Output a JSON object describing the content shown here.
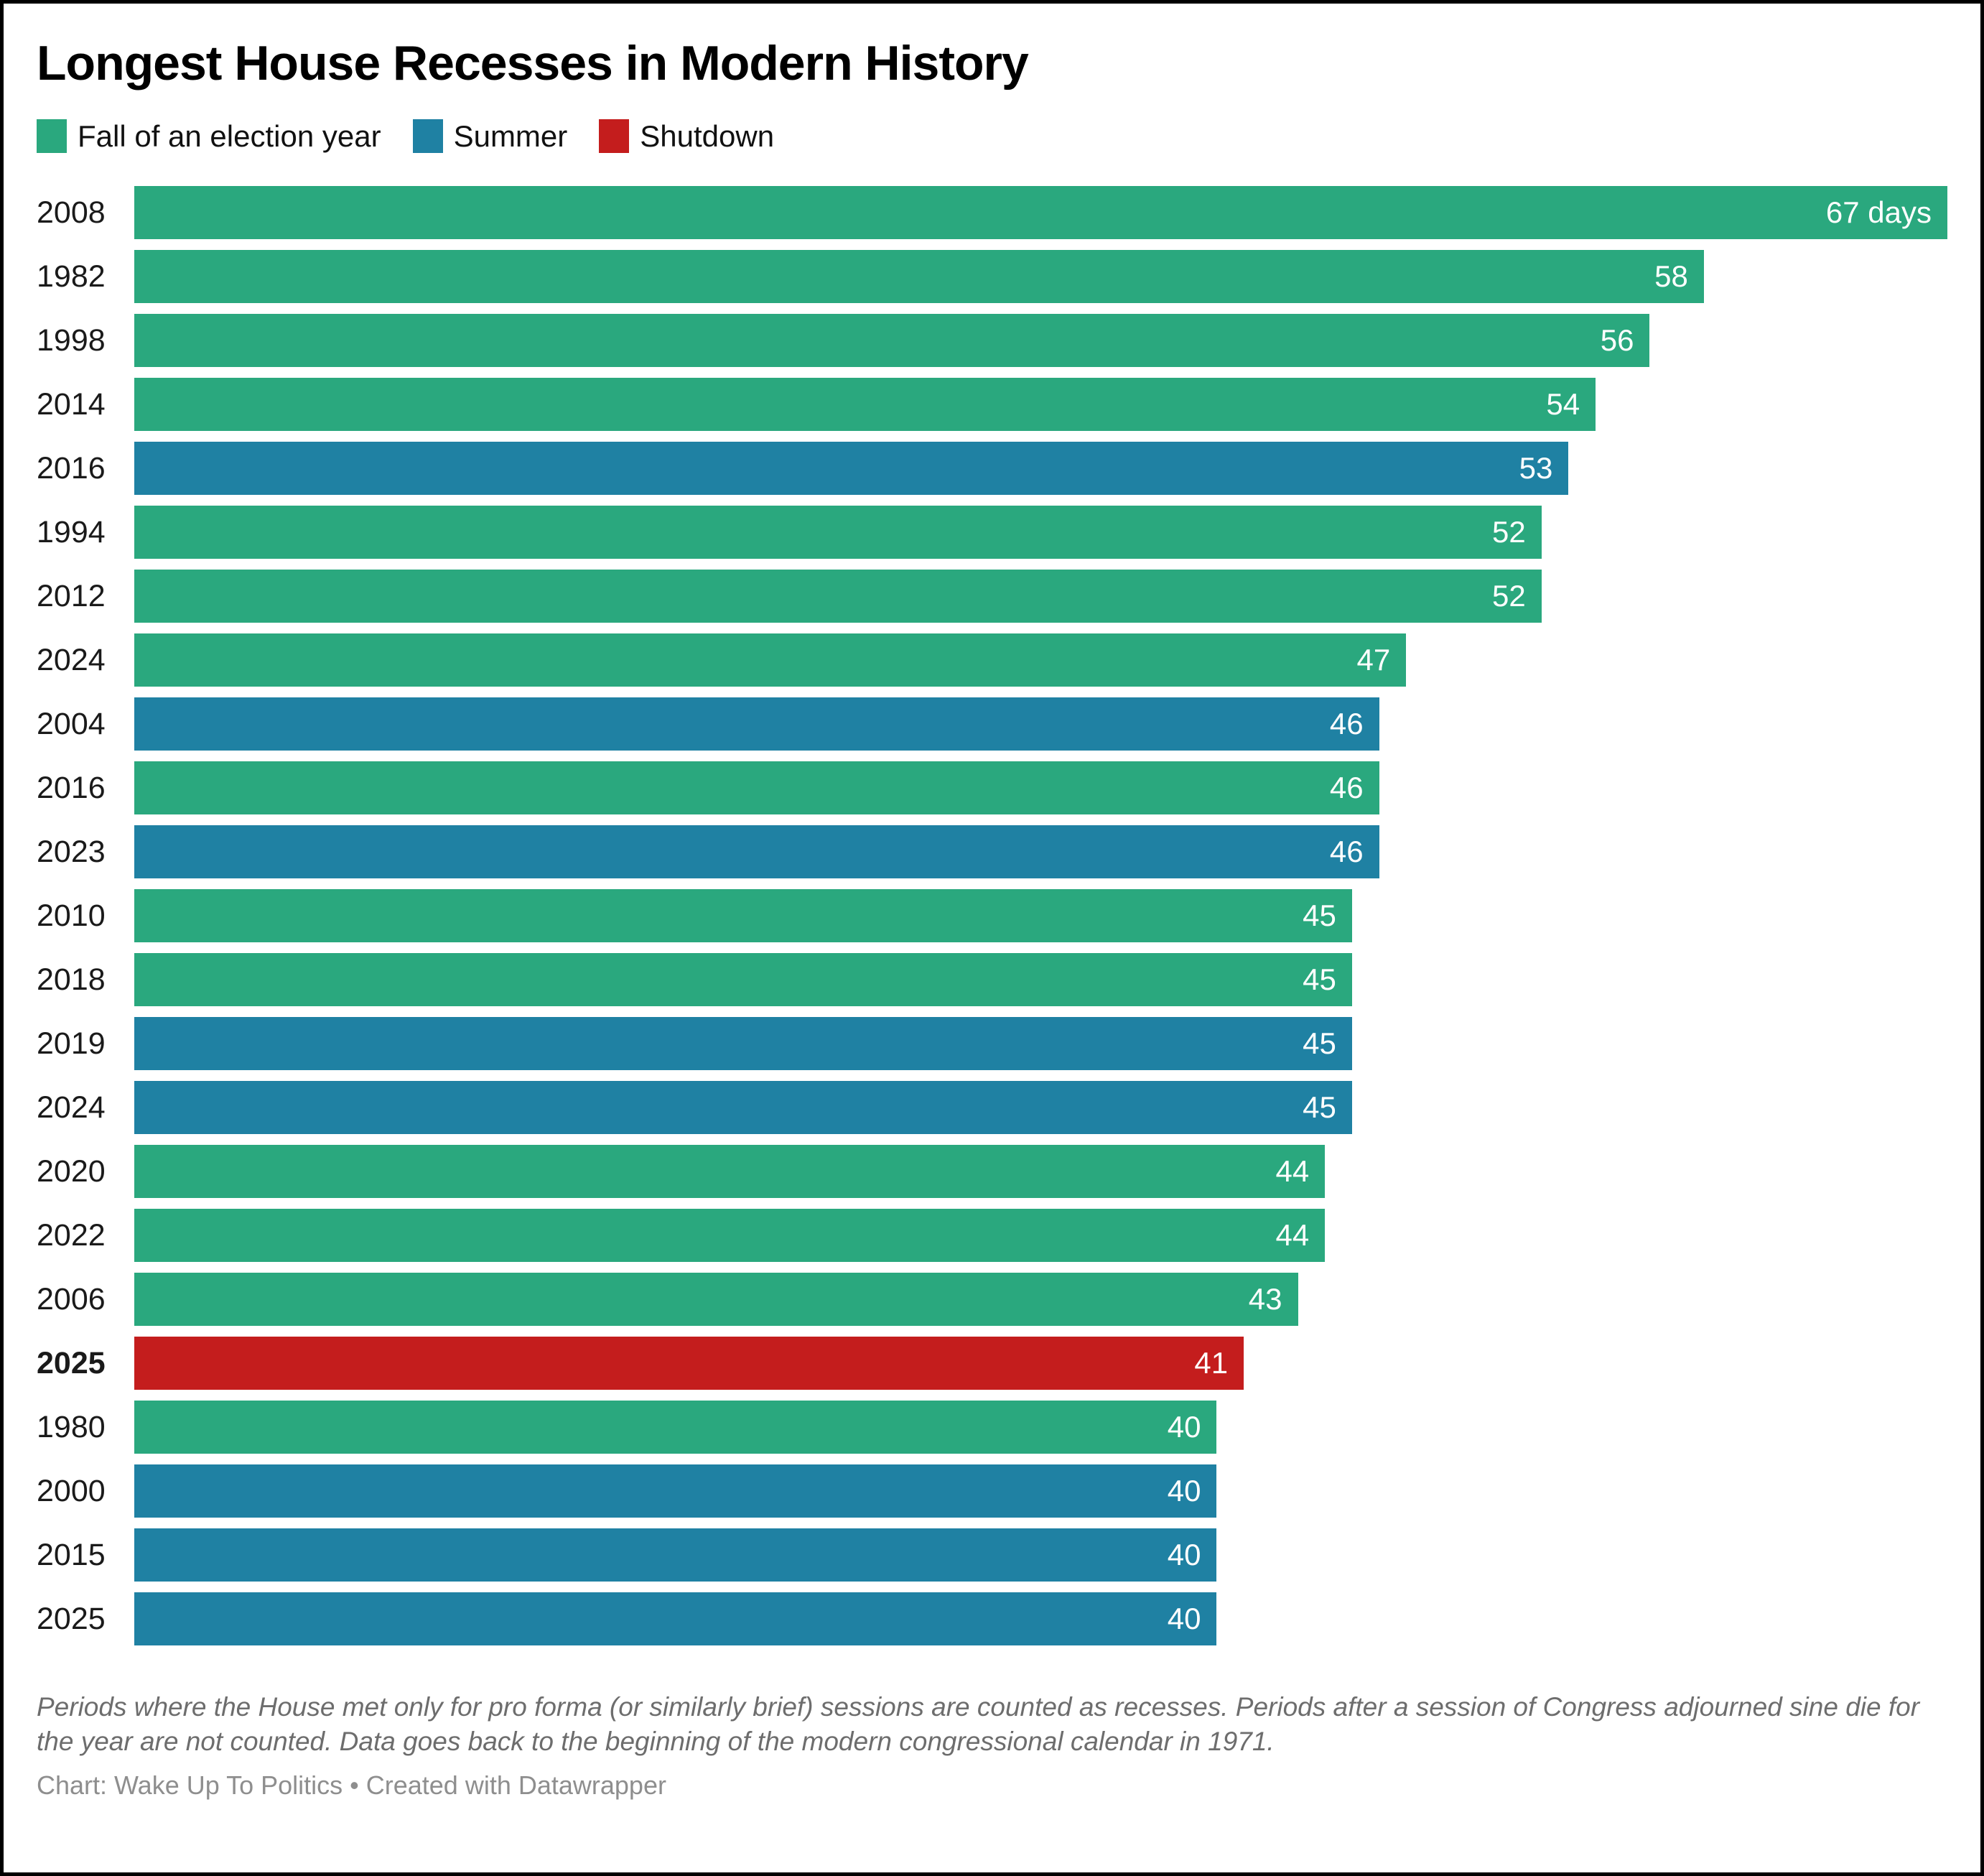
{
  "title": "Longest House Recesses in Modern History",
  "colors": {
    "fall": "#2AA87E",
    "summer": "#1F81A3",
    "shutdown": "#C41D1D"
  },
  "legend": [
    {
      "label": "Fall of an election year",
      "category": "fall"
    },
    {
      "label": "Summer",
      "category": "summer"
    },
    {
      "label": "Shutdown",
      "category": "shutdown"
    }
  ],
  "chart_data": {
    "type": "bar",
    "orientation": "horizontal",
    "title": "Longest House Recesses in Modern History",
    "xlabel": "",
    "ylabel": "",
    "unit": "days",
    "xlim": [
      0,
      67
    ],
    "grid": false,
    "legend_position": "top",
    "value_labels": "inside-end",
    "bars": [
      {
        "year": "2008",
        "value": 67,
        "value_label": "67 days",
        "category": "fall",
        "bold": false
      },
      {
        "year": "1982",
        "value": 58,
        "value_label": "58",
        "category": "fall",
        "bold": false
      },
      {
        "year": "1998",
        "value": 56,
        "value_label": "56",
        "category": "fall",
        "bold": false
      },
      {
        "year": "2014",
        "value": 54,
        "value_label": "54",
        "category": "fall",
        "bold": false
      },
      {
        "year": "2016",
        "value": 53,
        "value_label": "53",
        "category": "summer",
        "bold": false
      },
      {
        "year": "1994",
        "value": 52,
        "value_label": "52",
        "category": "fall",
        "bold": false
      },
      {
        "year": "2012",
        "value": 52,
        "value_label": "52",
        "category": "fall",
        "bold": false
      },
      {
        "year": "2024",
        "value": 47,
        "value_label": "47",
        "category": "fall",
        "bold": false
      },
      {
        "year": "2004",
        "value": 46,
        "value_label": "46",
        "category": "summer",
        "bold": false
      },
      {
        "year": "2016",
        "value": 46,
        "value_label": "46",
        "category": "fall",
        "bold": false
      },
      {
        "year": "2023",
        "value": 46,
        "value_label": "46",
        "category": "summer",
        "bold": false
      },
      {
        "year": "2010",
        "value": 45,
        "value_label": "45",
        "category": "fall",
        "bold": false
      },
      {
        "year": "2018",
        "value": 45,
        "value_label": "45",
        "category": "fall",
        "bold": false
      },
      {
        "year": "2019",
        "value": 45,
        "value_label": "45",
        "category": "summer",
        "bold": false
      },
      {
        "year": "2024",
        "value": 45,
        "value_label": "45",
        "category": "summer",
        "bold": false
      },
      {
        "year": "2020",
        "value": 44,
        "value_label": "44",
        "category": "fall",
        "bold": false
      },
      {
        "year": "2022",
        "value": 44,
        "value_label": "44",
        "category": "fall",
        "bold": false
      },
      {
        "year": "2006",
        "value": 43,
        "value_label": "43",
        "category": "fall",
        "bold": false
      },
      {
        "year": "2025",
        "value": 41,
        "value_label": "41",
        "category": "shutdown",
        "bold": true
      },
      {
        "year": "1980",
        "value": 40,
        "value_label": "40",
        "category": "fall",
        "bold": false
      },
      {
        "year": "2000",
        "value": 40,
        "value_label": "40",
        "category": "summer",
        "bold": false
      },
      {
        "year": "2015",
        "value": 40,
        "value_label": "40",
        "category": "summer",
        "bold": false
      },
      {
        "year": "2025",
        "value": 40,
        "value_label": "40",
        "category": "summer",
        "bold": false
      }
    ]
  },
  "notes": "Periods where the House met only for pro forma (or similarly brief) sessions are counted as recesses. Periods after a session of Congress adjourned sine die for the year are not counted. Data goes back to the beginning of the modern congressional calendar in 1971.",
  "byline": "Chart: Wake Up To Politics • Created with Datawrapper"
}
